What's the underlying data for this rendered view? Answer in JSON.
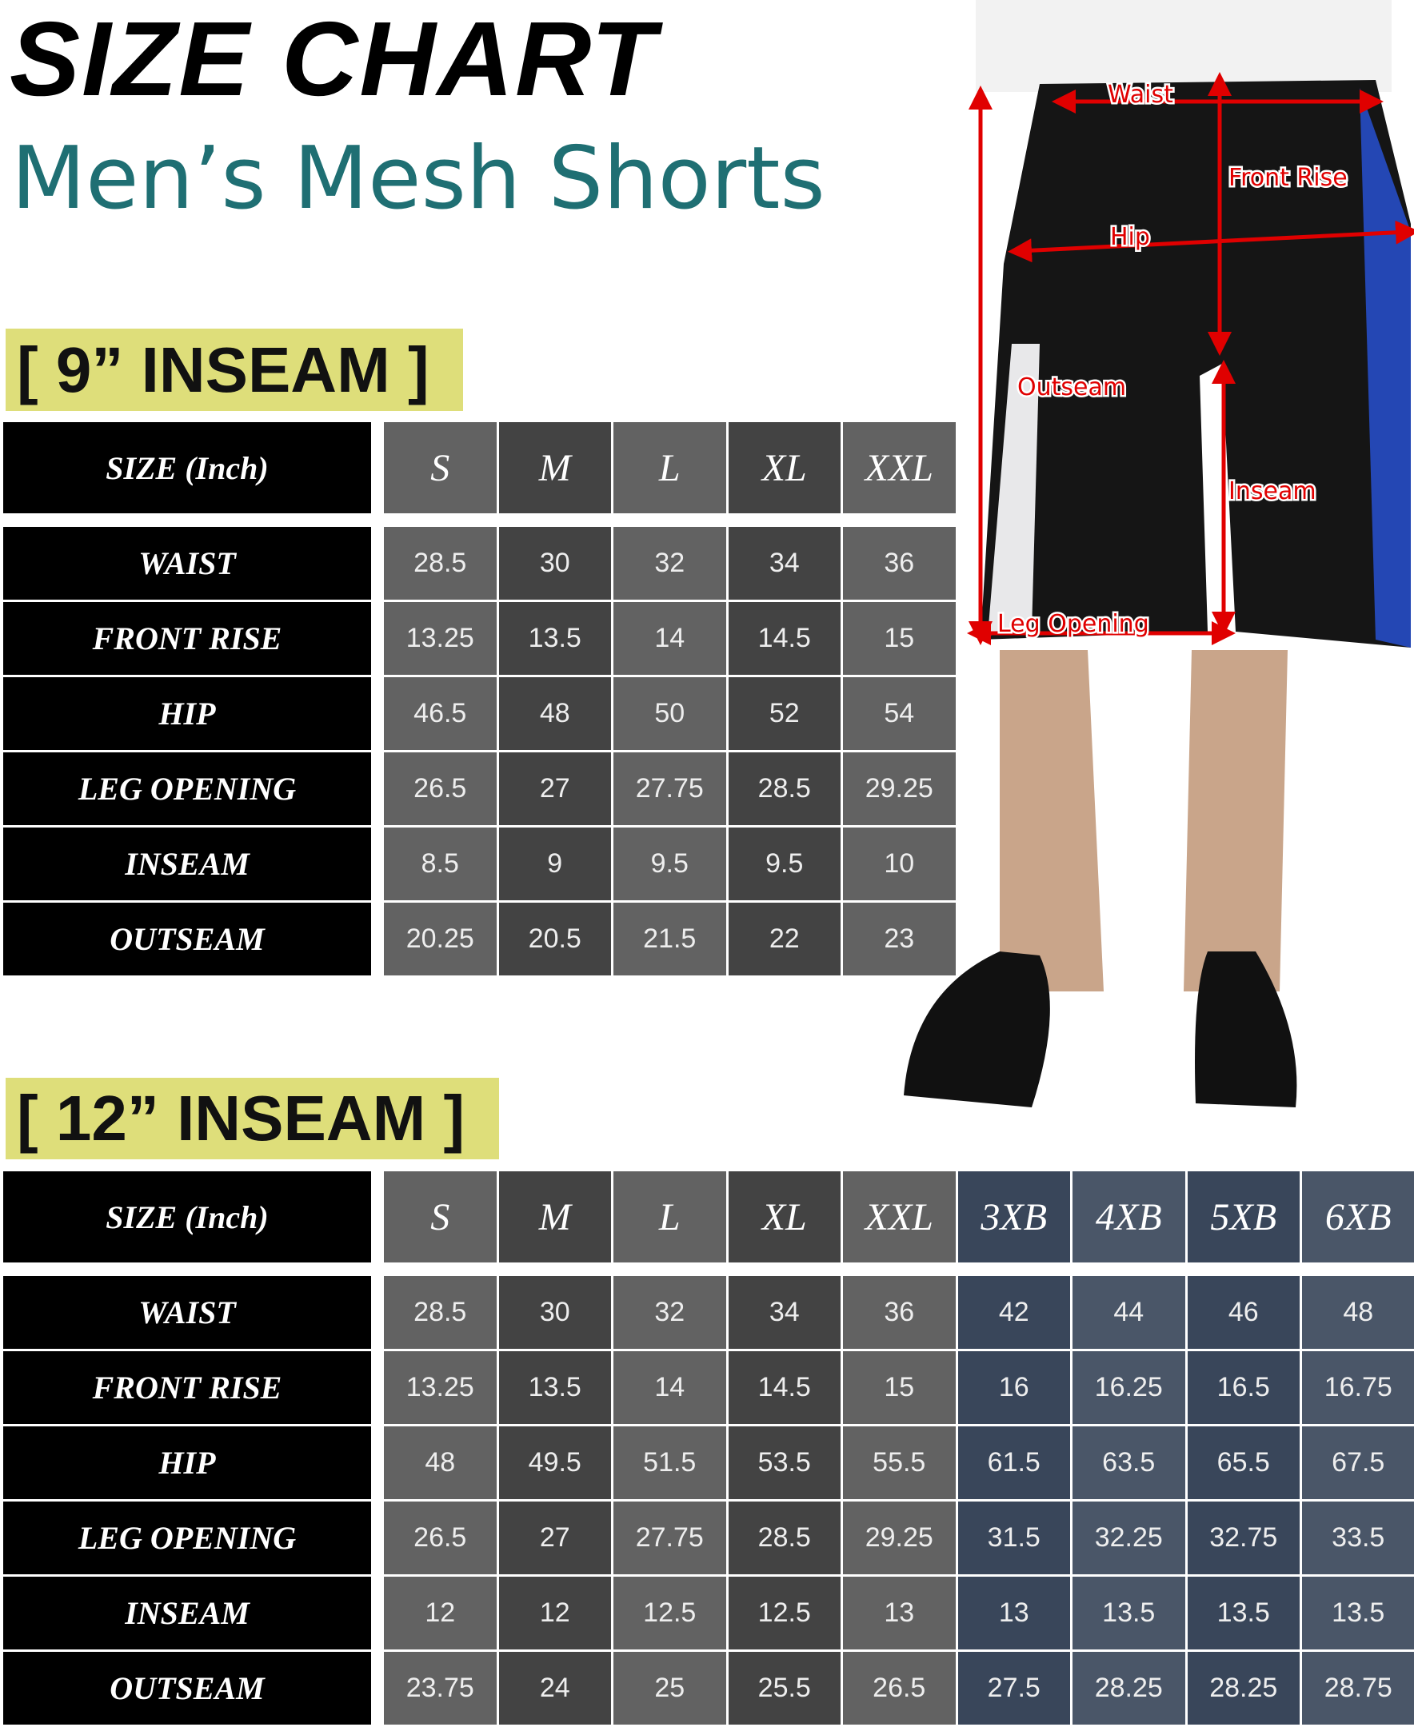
{
  "header": {
    "title": "SIZE CHART",
    "subtitle": "Men’s Mesh Shorts"
  },
  "diagram": {
    "labels": [
      "Waist",
      "Front Rise",
      "Hip",
      "Outseam",
      "Inseam",
      "Leg Opening"
    ]
  },
  "tables": [
    {
      "heading": "[ 9” INSEAM ]",
      "corner": "SIZE (Inch)",
      "columns": [
        "S",
        "M",
        "L",
        "XL",
        "XXL"
      ],
      "rows": [
        {
          "label": "WAIST",
          "values": [
            28.5,
            30,
            32,
            34,
            36
          ]
        },
        {
          "label": "FRONT RISE",
          "values": [
            13.25,
            13.5,
            14,
            14.5,
            15
          ]
        },
        {
          "label": "HIP",
          "values": [
            46.5,
            48,
            50,
            52,
            54
          ]
        },
        {
          "label": "LEG OPENING",
          "values": [
            26.5,
            27,
            27.75,
            28.5,
            29.25
          ]
        },
        {
          "label": "INSEAM",
          "values": [
            8.5,
            9,
            9.5,
            9.5,
            10
          ]
        },
        {
          "label": "OUTSEAM",
          "values": [
            20.25,
            20.5,
            21.5,
            22,
            23
          ]
        }
      ]
    },
    {
      "heading": "[ 12” INSEAM ]",
      "corner": "SIZE (Inch)",
      "columns": [
        "S",
        "M",
        "L",
        "XL",
        "XXL",
        "3XB",
        "4XB",
        "5XB",
        "6XB"
      ],
      "rows": [
        {
          "label": "WAIST",
          "values": [
            28.5,
            30,
            32,
            34,
            36,
            42,
            44,
            46,
            48
          ]
        },
        {
          "label": "FRONT RISE",
          "values": [
            13.25,
            13.5,
            14,
            14.5,
            15,
            16,
            16.25,
            16.5,
            16.75
          ]
        },
        {
          "label": "HIP",
          "values": [
            48,
            49.5,
            51.5,
            53.5,
            55.5,
            61.5,
            63.5,
            65.5,
            67.5
          ]
        },
        {
          "label": "LEG OPENING",
          "values": [
            26.5,
            27,
            27.75,
            28.5,
            29.25,
            31.5,
            32.25,
            32.75,
            33.5
          ]
        },
        {
          "label": "INSEAM",
          "values": [
            12,
            12,
            12.5,
            12.5,
            13,
            13,
            13.5,
            13.5,
            13.5
          ]
        },
        {
          "label": "OUTSEAM",
          "values": [
            23.75,
            24,
            25,
            25.5,
            26.5,
            27.5,
            28.25,
            28.25,
            28.75
          ]
        }
      ]
    }
  ]
}
